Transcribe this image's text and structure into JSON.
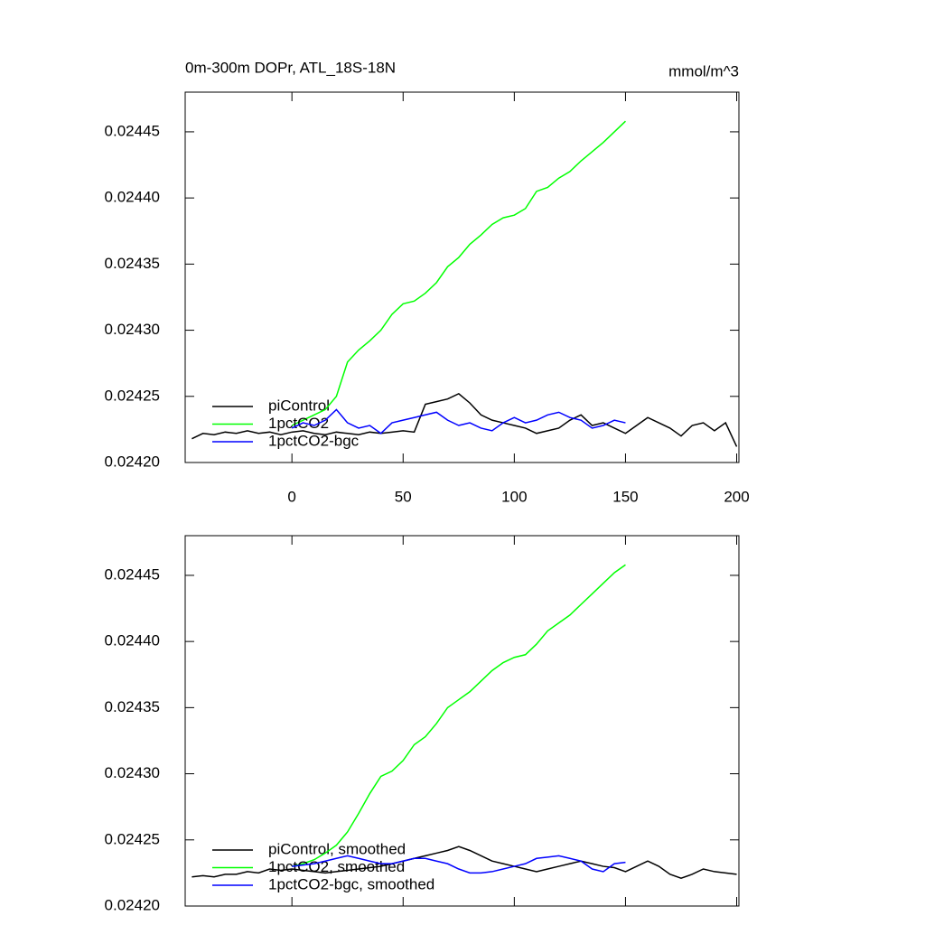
{
  "chart_data": [
    {
      "type": "line",
      "title": "0m-300m DOPr, ATL_18S-18N",
      "units": "mmol/m^3",
      "x": [
        -45,
        -40,
        -35,
        -30,
        -25,
        -20,
        -15,
        -10,
        -5,
        0,
        5,
        10,
        15,
        20,
        25,
        30,
        35,
        40,
        45,
        50,
        55,
        60,
        65,
        70,
        75,
        80,
        85,
        90,
        95,
        100,
        105,
        110,
        115,
        120,
        125,
        130,
        135,
        140,
        145,
        150,
        155,
        160,
        165,
        170,
        175,
        180,
        185,
        190,
        195,
        200
      ],
      "xlim": [
        -48,
        201
      ],
      "xticks": [
        0,
        50,
        100,
        150,
        200
      ],
      "xtick_labels": true,
      "ylim": [
        0.0242,
        0.02448
      ],
      "yticks": [
        {
          "value": 0.0242,
          "label": "0.02420"
        },
        0.02425,
        {
          "value": 0.0243,
          "label": "0.02430"
        },
        0.02435,
        {
          "value": 0.0244,
          "label": "0.02440"
        },
        0.02445
      ],
      "legend": "lower left",
      "series": [
        {
          "name": "piControl",
          "color": "#000000",
          "values": [
            0.024218,
            0.024222,
            0.024221,
            0.024223,
            0.024222,
            0.024224,
            0.024222,
            0.024223,
            0.024221,
            0.024223,
            0.024224,
            0.024222,
            0.024221,
            0.024223,
            0.024222,
            0.024221,
            0.024223,
            0.024222,
            0.024223,
            0.024224,
            0.024223,
            0.024244,
            0.024246,
            0.024248,
            0.024252,
            0.024245,
            0.024236,
            0.024232,
            0.02423,
            0.024228,
            0.024226,
            0.024222,
            0.024224,
            0.024226,
            0.024232,
            0.024236,
            0.024228,
            0.02423,
            0.024226,
            0.024222,
            0.024228,
            0.024234,
            0.02423,
            0.024226,
            0.02422,
            0.024228,
            0.02423,
            0.024224,
            0.02423,
            0.024212
          ]
        },
        {
          "name": "1pctCO2",
          "color": "#00ff00",
          "values": [
            null,
            null,
            null,
            null,
            null,
            null,
            null,
            null,
            null,
            0.024228,
            0.024232,
            0.024236,
            0.02424,
            0.02425,
            0.024276,
            0.024285,
            0.024292,
            0.0243,
            0.024312,
            0.02432,
            0.024322,
            0.024328,
            0.024336,
            0.024348,
            0.024355,
            0.024365,
            0.024372,
            0.02438,
            0.024385,
            0.024387,
            0.024392,
            0.024405,
            0.024408,
            0.024415,
            0.02442,
            0.024428,
            0.024435,
            0.024442,
            0.02445,
            0.024458,
            null,
            null,
            null,
            null,
            null,
            null,
            null,
            null,
            null,
            null
          ]
        },
        {
          "name": "1pctCO2-bgc",
          "color": "#0000ff",
          "values": [
            null,
            null,
            null,
            null,
            null,
            null,
            null,
            null,
            null,
            0.024226,
            0.02423,
            0.024228,
            0.024232,
            0.02424,
            0.02423,
            0.024226,
            0.024228,
            0.024222,
            0.02423,
            0.024232,
            0.024234,
            0.024236,
            0.024238,
            0.024232,
            0.024228,
            0.02423,
            0.024226,
            0.024224,
            0.02423,
            0.024234,
            0.02423,
            0.024232,
            0.024236,
            0.024238,
            0.024234,
            0.024232,
            0.024226,
            0.024228,
            0.024232,
            0.02423,
            null,
            null,
            null,
            null,
            null,
            null,
            null,
            null,
            null,
            null
          ]
        }
      ]
    },
    {
      "type": "line",
      "x": [
        -45,
        -40,
        -35,
        -30,
        -25,
        -20,
        -15,
        -10,
        -5,
        0,
        5,
        10,
        15,
        20,
        25,
        30,
        35,
        40,
        45,
        50,
        55,
        60,
        65,
        70,
        75,
        80,
        85,
        90,
        95,
        100,
        105,
        110,
        115,
        120,
        125,
        130,
        135,
        140,
        145,
        150,
        155,
        160,
        165,
        170,
        175,
        180,
        185,
        190,
        195,
        200
      ],
      "xlim": [
        -48,
        201
      ],
      "xticks": [
        0,
        50,
        100,
        150,
        200
      ],
      "xtick_labels": false,
      "ylim": [
        0.0242,
        0.02448
      ],
      "yticks": [
        {
          "value": 0.0242,
          "label": "0.02420"
        },
        0.02425,
        {
          "value": 0.0243,
          "label": "0.02430"
        },
        0.02435,
        {
          "value": 0.0244,
          "label": "0.02440"
        },
        0.02445
      ],
      "legend": "lower left",
      "series": [
        {
          "name": "piControl, smoothed",
          "color": "#000000",
          "values": [
            0.024222,
            0.024223,
            0.024222,
            0.024224,
            0.024224,
            0.024226,
            0.024225,
            0.024228,
            0.024227,
            0.024228,
            0.024227,
            0.024226,
            0.024225,
            0.024226,
            0.024227,
            0.024228,
            0.024229,
            0.02423,
            0.024232,
            0.024234,
            0.024236,
            0.024238,
            0.02424,
            0.024242,
            0.024245,
            0.024242,
            0.024238,
            0.024234,
            0.024232,
            0.02423,
            0.024228,
            0.024226,
            0.024228,
            0.02423,
            0.024232,
            0.024234,
            0.024232,
            0.02423,
            0.024229,
            0.024226,
            0.02423,
            0.024234,
            0.02423,
            0.024224,
            0.024221,
            0.024224,
            0.024228,
            0.024226,
            0.024225,
            0.024224
          ]
        },
        {
          "name": "1pctCO2, smoothed",
          "color": "#00ff00",
          "values": [
            null,
            null,
            null,
            null,
            null,
            null,
            null,
            null,
            null,
            0.02423,
            0.024232,
            0.024235,
            0.02424,
            0.024246,
            0.024256,
            0.02427,
            0.024285,
            0.024298,
            0.024302,
            0.02431,
            0.024322,
            0.024328,
            0.024338,
            0.02435,
            0.024356,
            0.024362,
            0.02437,
            0.024378,
            0.024384,
            0.024388,
            0.02439,
            0.024398,
            0.024408,
            0.024414,
            0.02442,
            0.024428,
            0.024436,
            0.024444,
            0.024452,
            0.024458,
            null,
            null,
            null,
            null,
            null,
            null,
            null,
            null,
            null,
            null
          ]
        },
        {
          "name": "1pctCO2-bgc, smoothed",
          "color": "#0000ff",
          "values": [
            null,
            null,
            null,
            null,
            null,
            null,
            null,
            null,
            null,
            0.02423,
            0.024231,
            0.024232,
            0.024234,
            0.024236,
            0.024238,
            0.024236,
            0.024234,
            0.024232,
            0.024232,
            0.024234,
            0.024236,
            0.024236,
            0.024234,
            0.024232,
            0.024228,
            0.024225,
            0.024225,
            0.024226,
            0.024228,
            0.02423,
            0.024232,
            0.024236,
            0.024237,
            0.024238,
            0.024236,
            0.024234,
            0.024228,
            0.024226,
            0.024232,
            0.024233,
            null,
            null,
            null,
            null,
            null,
            null,
            null,
            null,
            null,
            null
          ]
        }
      ]
    }
  ]
}
